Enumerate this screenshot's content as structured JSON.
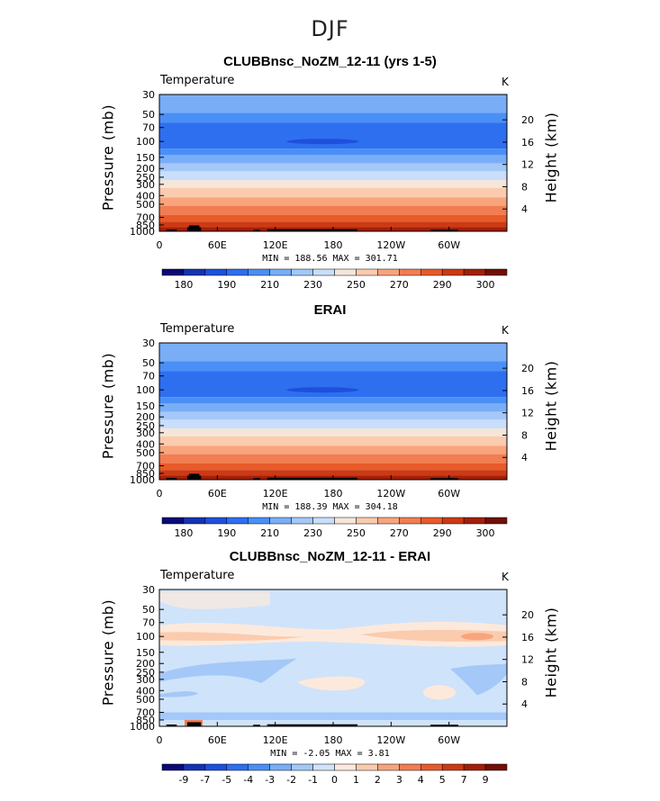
{
  "main_title": "DJF",
  "chart_data": [
    {
      "type": "heatmap",
      "title": "CLUBBnsc_NoZM_12-11 (yrs 1-5)",
      "variable": "Temperature",
      "units": "K",
      "ylabel": "Pressure (mb)",
      "ylabel_right": "Height (km)",
      "y_ticks": [
        "30",
        "50",
        "70",
        "100",
        "150",
        "200",
        "250",
        "300",
        "400",
        "500",
        "700",
        "850",
        "1000"
      ],
      "y_ticks_right": [
        "20",
        "16",
        "12",
        "8",
        "4"
      ],
      "x_ticks": [
        "0",
        "60E",
        "120E",
        "180",
        "120W",
        "60W"
      ],
      "stats": "MIN = 188.56  MAX = 301.71",
      "min": 188.56,
      "max": 301.71,
      "colorbar_labels": [
        "180",
        "190",
        "210",
        "230",
        "250",
        "270",
        "290",
        "300"
      ]
    },
    {
      "type": "heatmap",
      "title": "ERAI",
      "variable": "Temperature",
      "units": "K",
      "ylabel": "Pressure (mb)",
      "ylabel_right": "Height (km)",
      "y_ticks": [
        "30",
        "50",
        "70",
        "100",
        "150",
        "200",
        "250",
        "300",
        "400",
        "500",
        "700",
        "850",
        "1000"
      ],
      "y_ticks_right": [
        "20",
        "16",
        "12",
        "8",
        "4"
      ],
      "x_ticks": [
        "0",
        "60E",
        "120E",
        "180",
        "120W",
        "60W"
      ],
      "stats": "MIN = 188.39  MAX = 304.18",
      "min": 188.39,
      "max": 304.18,
      "colorbar_labels": [
        "180",
        "190",
        "210",
        "230",
        "250",
        "270",
        "290",
        "300"
      ]
    },
    {
      "type": "heatmap",
      "title": "CLUBBnsc_NoZM_12-11 - ERAI",
      "variable": "Temperature",
      "units": "K",
      "ylabel": "Pressure (mb)",
      "ylabel_right": "Height (km)",
      "y_ticks": [
        "30",
        "50",
        "70",
        "100",
        "150",
        "200",
        "250",
        "300",
        "400",
        "500",
        "700",
        "850",
        "1000"
      ],
      "y_ticks_right": [
        "20",
        "16",
        "12",
        "8",
        "4"
      ],
      "x_ticks": [
        "0",
        "60E",
        "120E",
        "180",
        "120W",
        "60W"
      ],
      "stats": "MIN =   -2.05  MAX =    3.81",
      "min": -2.05,
      "max": 3.81,
      "colorbar_labels": [
        "-9",
        "-7",
        "-5",
        "-4",
        "-3",
        "-2",
        "-1",
        "0",
        "1",
        "2",
        "3",
        "4",
        "5",
        "7",
        "9"
      ]
    }
  ],
  "palette": [
    "#0a0a78",
    "#1433b4",
    "#1e50dc",
    "#2e6ff0",
    "#4a8ff5",
    "#79aef7",
    "#a4c8f7",
    "#c9defa",
    "#f5e6d8",
    "#fbcbae",
    "#f8a47d",
    "#f27d52",
    "#e85a2a",
    "#cc3a14",
    "#a31f0a",
    "#730f05"
  ],
  "diff_palette": [
    "#0a0a78",
    "#1433b4",
    "#1e50dc",
    "#2e6ff0",
    "#4a8ff5",
    "#79aef7",
    "#a4c8f7",
    "#cfe3fb",
    "#fde9dc",
    "#fbcbae",
    "#f8a47d",
    "#f27d52",
    "#e85a2a",
    "#cc3a14",
    "#a31f0a",
    "#730f05"
  ]
}
